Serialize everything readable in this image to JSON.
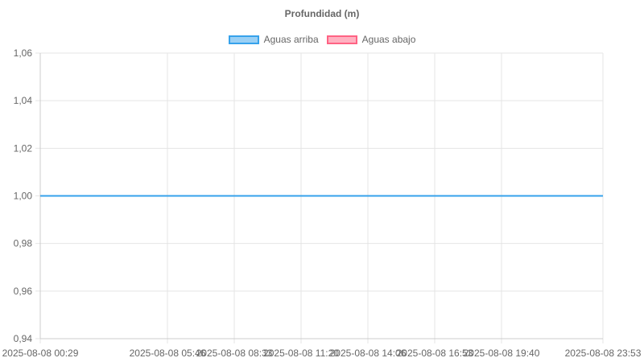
{
  "chart_data": {
    "type": "line",
    "title": "Profundidad (m)",
    "xlabel": "",
    "ylabel": "",
    "x_ticks": [
      "2025-08-08 00:29",
      "2025-08-08 05:46",
      "2025-08-08 08:33",
      "2025-08-08 11:20",
      "2025-08-08 14:06",
      "2025-08-08 16:53",
      "2025-08-08 19:40",
      "2025-08-08 23:53"
    ],
    "y_ticks": [
      "1,06",
      "1,04",
      "1,02",
      "1,00",
      "0,98",
      "0,96",
      "0,94"
    ],
    "ylim": [
      0.94,
      1.06
    ],
    "grid": true,
    "legend_position": "top",
    "series": [
      {
        "name": "Aguas arriba",
        "color": "#36a2eb",
        "fill": "#9ad0f5",
        "points": [
          {
            "x": "2025-08-08 00:29",
            "y": 1.0
          },
          {
            "x": "2025-08-08 23:53",
            "y": 1.0
          }
        ]
      },
      {
        "name": "Aguas abajo",
        "color": "#ff6384",
        "fill": "#ffb1c1",
        "points": []
      }
    ]
  }
}
